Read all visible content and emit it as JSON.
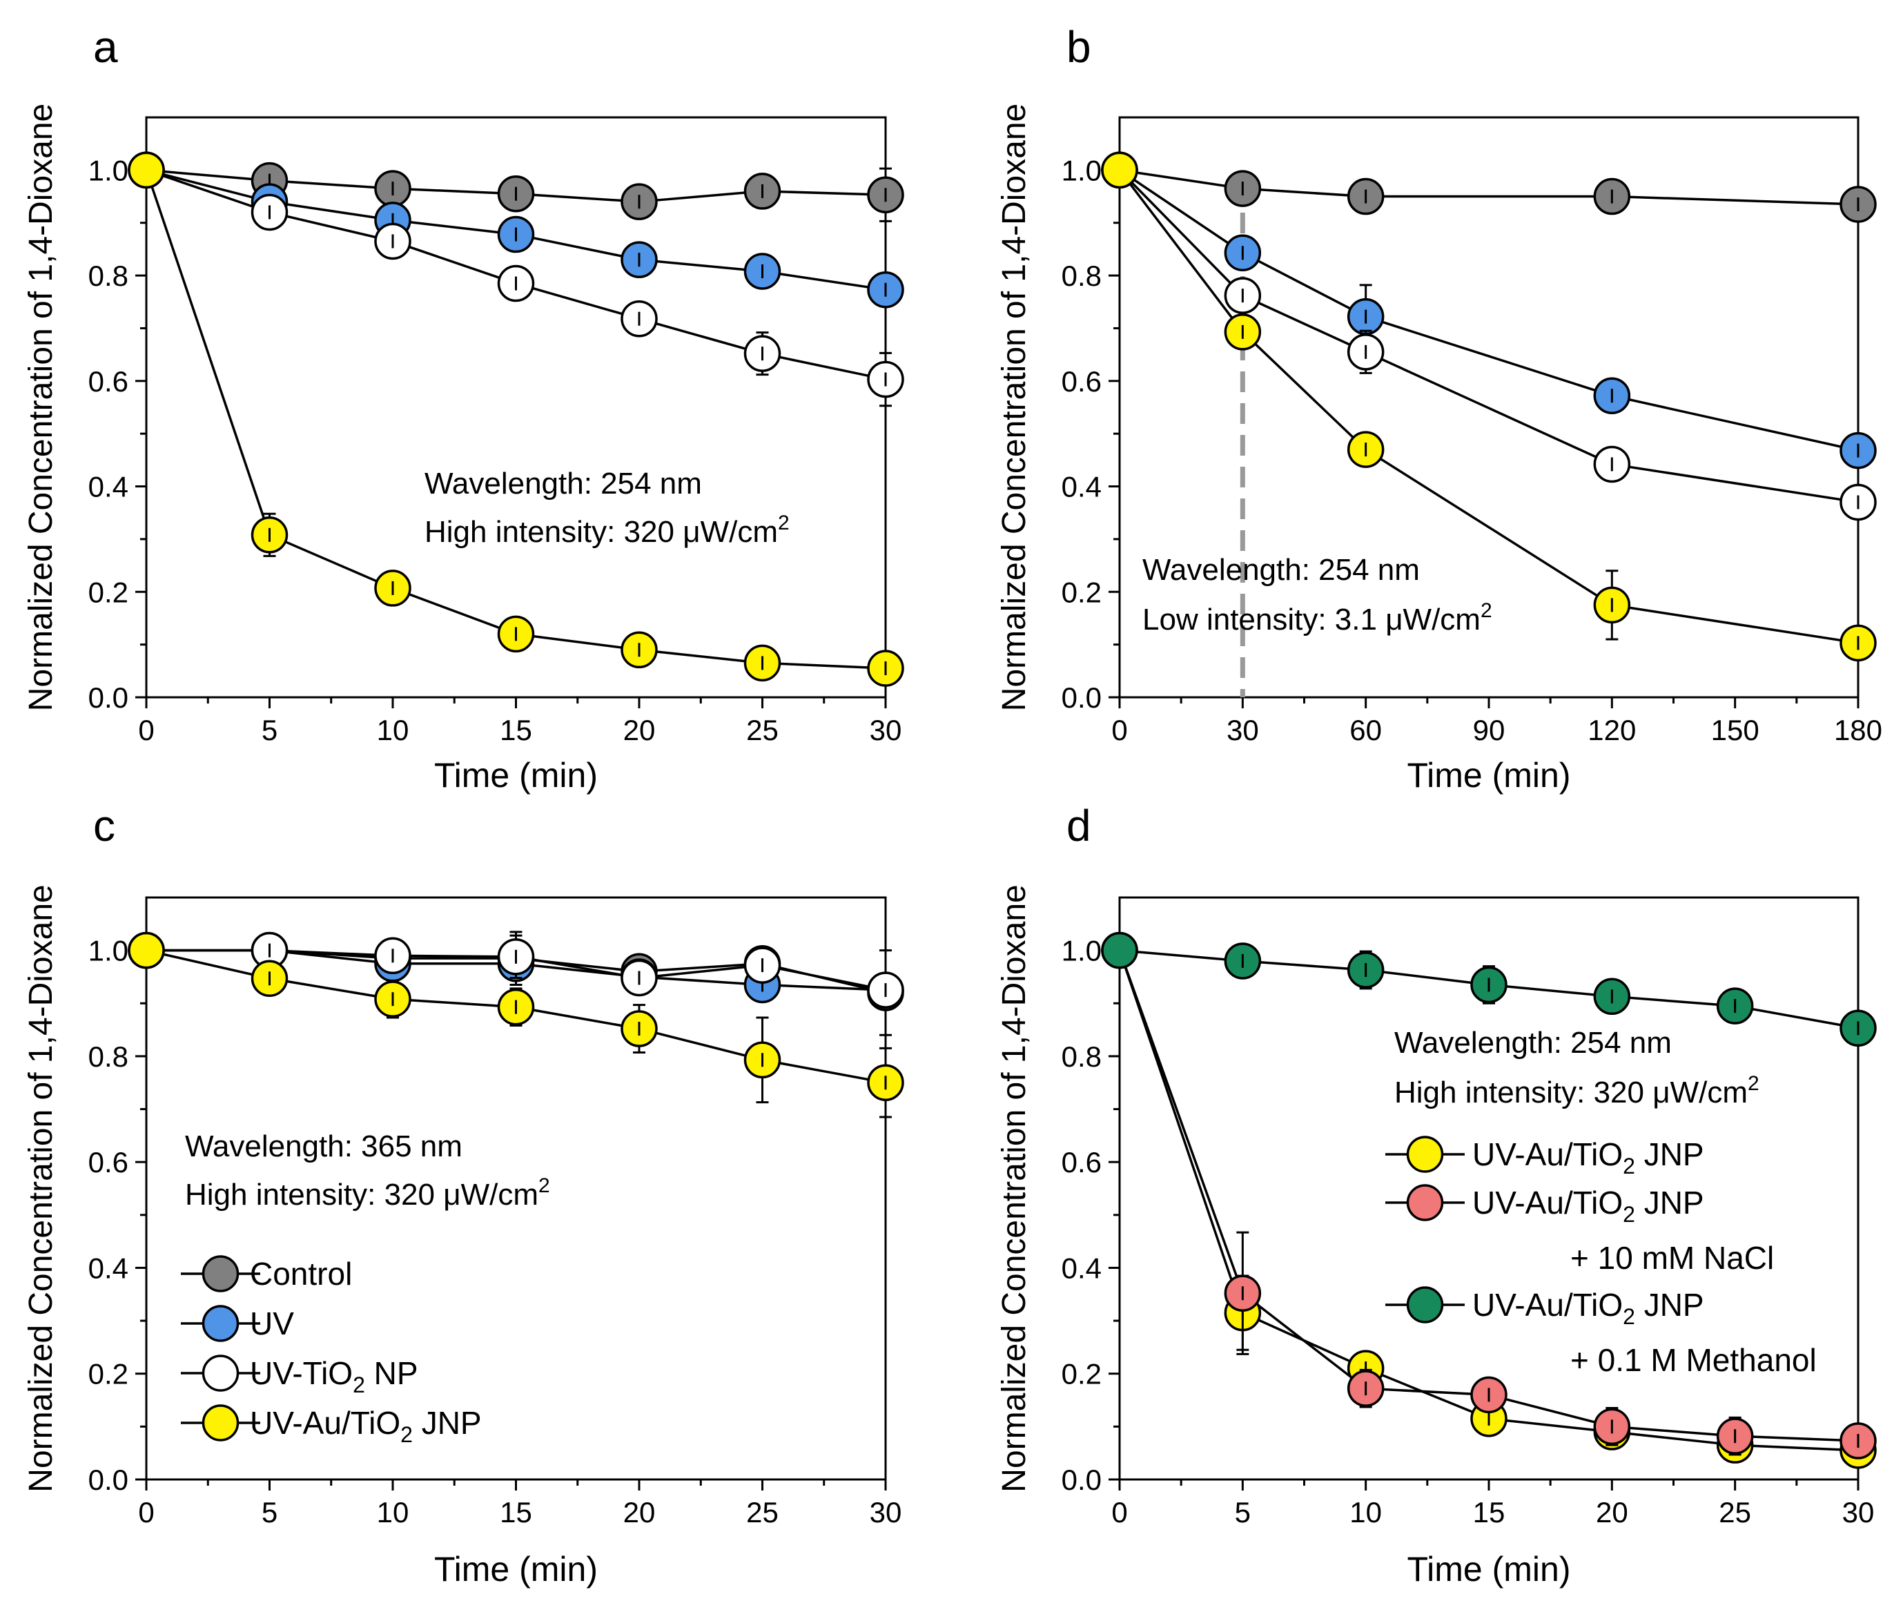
{
  "chart_data": [
    {
      "panel": "a",
      "type": "line",
      "xlabel": "Time (min)",
      "ylabel": "Normalized Concentration of 1,4-Dioxane",
      "xlim": [
        0,
        30
      ],
      "ylim": [
        0,
        1.1
      ],
      "xticks": [
        0,
        5,
        10,
        15,
        20,
        25,
        30
      ],
      "yticks": [
        "0.0",
        "0.2",
        "0.4",
        "0.6",
        "0.8",
        "1.0"
      ],
      "annotations": [
        {
          "text": "Wavelength: 254 nm"
        },
        {
          "text": "High intensity: 320 μW/cm",
          "sup": "2"
        }
      ],
      "series": [
        {
          "name": "Control",
          "color": "#808080",
          "x": [
            0,
            5,
            10,
            15,
            20,
            25,
            30
          ],
          "y": [
            1.0,
            0.98,
            0.965,
            0.955,
            0.94,
            0.96,
            0.953
          ],
          "err": [
            0,
            0.03,
            0.02,
            0.025,
            0.03,
            0.03,
            0.05
          ]
        },
        {
          "name": "UV",
          "color": "#4F94E6",
          "x": [
            0,
            5,
            10,
            15,
            20,
            25,
            30
          ],
          "y": [
            1.0,
            0.94,
            0.905,
            0.878,
            0.83,
            0.808,
            0.773
          ],
          "err": [
            0,
            0.02,
            0.02,
            0.02,
            0.02,
            0.02,
            0.02
          ]
        },
        {
          "name": "UV-TiO2 NP",
          "color": "#FFFFFF",
          "x": [
            0,
            5,
            10,
            15,
            20,
            25,
            30
          ],
          "y": [
            1.0,
            0.92,
            0.865,
            0.785,
            0.718,
            0.652,
            0.603
          ],
          "err": [
            0,
            0.02,
            0.02,
            0.015,
            0.015,
            0.04,
            0.05
          ]
        },
        {
          "name": "UV-Au/TiO2 JNP",
          "color": "#FFF200",
          "x": [
            0,
            5,
            10,
            15,
            20,
            25,
            30
          ],
          "y": [
            1.0,
            0.308,
            0.207,
            0.12,
            0.09,
            0.065,
            0.055
          ],
          "err": [
            0,
            0.04,
            0.015,
            0.015,
            0.015,
            0.015,
            0.01
          ]
        }
      ]
    },
    {
      "panel": "b",
      "type": "line",
      "xlabel": "Time (min)",
      "ylabel": "Normalized Concentration of 1,4-Dioxane",
      "xlim": [
        0,
        180
      ],
      "ylim": [
        0,
        1.1
      ],
      "xticks": [
        0,
        30,
        60,
        90,
        120,
        150,
        180
      ],
      "yticks": [
        "0.0",
        "0.2",
        "0.4",
        "0.6",
        "0.8",
        "1.0"
      ],
      "vline_x": 30,
      "annotations": [
        {
          "text": "Wavelength: 254 nm"
        },
        {
          "text": "Low intensity: 3.1 μW/cm",
          "sup": "2"
        }
      ],
      "series": [
        {
          "name": "Control",
          "color": "#808080",
          "x": [
            0,
            30,
            60,
            120,
            180
          ],
          "y": [
            1.0,
            0.965,
            0.95,
            0.95,
            0.935
          ],
          "err": [
            0,
            0.03,
            0.02,
            0.02,
            0.02
          ]
        },
        {
          "name": "UV",
          "color": "#4F94E6",
          "x": [
            0,
            30,
            60,
            120,
            180
          ],
          "y": [
            1.0,
            0.843,
            0.722,
            0.572,
            0.468
          ],
          "err": [
            0,
            0.03,
            0.06,
            0.02,
            0.02
          ]
        },
        {
          "name": "UV-TiO2 NP",
          "color": "#FFFFFF",
          "x": [
            0,
            30,
            60,
            120,
            180
          ],
          "y": [
            1.0,
            0.762,
            0.655,
            0.442,
            0.37
          ],
          "err": [
            0,
            0.02,
            0.04,
            0.02,
            0.02
          ]
        },
        {
          "name": "UV-Au/TiO2 JNP",
          "color": "#FFF200",
          "x": [
            0,
            30,
            60,
            120,
            180
          ],
          "y": [
            1.0,
            0.693,
            0.47,
            0.175,
            0.103
          ],
          "err": [
            0,
            0.02,
            0.015,
            0.065,
            0.015
          ]
        }
      ]
    },
    {
      "panel": "c",
      "type": "line",
      "xlabel": "Time (min)",
      "ylabel": "Normalized Concentration of 1,4-Dioxane",
      "xlim": [
        0,
        30
      ],
      "ylim": [
        0,
        1.1
      ],
      "xticks": [
        0,
        5,
        10,
        15,
        20,
        25,
        30
      ],
      "yticks": [
        "0.0",
        "0.2",
        "0.4",
        "0.6",
        "0.8",
        "1.0"
      ],
      "annotations": [
        {
          "text": "Wavelength: 365 nm"
        },
        {
          "text": "High intensity: 320 μW/cm",
          "sup": "2"
        }
      ],
      "legend": [
        {
          "label": "Control",
          "color": "#808080"
        },
        {
          "label": "UV",
          "color": "#4F94E6"
        },
        {
          "label": "UV-TiO",
          "sub": "2",
          "label_tail": " NP",
          "color": "#FFFFFF"
        },
        {
          "label": "UV-Au/TiO",
          "sub": "2",
          "label_tail": " JNP",
          "color": "#FFF200"
        }
      ],
      "series": [
        {
          "name": "Control",
          "color": "#808080",
          "x": [
            0,
            5,
            10,
            15,
            20,
            25,
            30
          ],
          "y": [
            1.0,
            1.0,
            0.985,
            0.985,
            0.96,
            0.975,
            0.92
          ],
          "err": [
            0,
            0.03,
            0.03,
            0.05,
            0.03,
            0.03,
            0.08
          ]
        },
        {
          "name": "UV",
          "color": "#4F94E6",
          "x": [
            0,
            5,
            10,
            15,
            20,
            25,
            30
          ],
          "y": [
            1.0,
            1.0,
            0.975,
            0.975,
            0.95,
            0.935,
            0.925
          ],
          "err": [
            0,
            0.02,
            0.02,
            0.02,
            0.03,
            0.03,
            0.02
          ]
        },
        {
          "name": "UV-TiO2 NP",
          "color": "#FFFFFF",
          "x": [
            0,
            5,
            10,
            15,
            20,
            25,
            30
          ],
          "y": [
            1.0,
            1.0,
            0.99,
            0.988,
            0.948,
            0.972,
            0.925
          ],
          "err": [
            0,
            0.02,
            0.02,
            0.04,
            0.02,
            0.02,
            0.02
          ]
        },
        {
          "name": "UV-Au/TiO2 JNP",
          "color": "#FFF200",
          "x": [
            0,
            5,
            10,
            15,
            20,
            25,
            30
          ],
          "y": [
            1.0,
            0.947,
            0.908,
            0.893,
            0.852,
            0.793,
            0.75
          ],
          "err": [
            0,
            0.03,
            0.035,
            0.035,
            0.045,
            0.08,
            0.065
          ]
        }
      ]
    },
    {
      "panel": "d",
      "type": "line",
      "xlabel": "Time (min)",
      "ylabel": "Normalized Concentration of 1,4-Dioxane",
      "xlim": [
        0,
        30
      ],
      "ylim": [
        0,
        1.1
      ],
      "xticks": [
        0,
        5,
        10,
        15,
        20,
        25,
        30
      ],
      "yticks": [
        "0.0",
        "0.2",
        "0.4",
        "0.6",
        "0.8",
        "1.0"
      ],
      "annotations": [
        {
          "text": "Wavelength: 254 nm"
        },
        {
          "text": "High intensity: 320 μW/cm",
          "sup": "2"
        }
      ],
      "legend": [
        {
          "label": "UV-Au/TiO",
          "sub": "2",
          "label_tail": " JNP",
          "color": "#FFF200"
        },
        {
          "label": "UV-Au/TiO",
          "sub": "2",
          "label_tail": " JNP",
          "extra": "+ 10 mM NaCl",
          "color": "#F07878"
        },
        {
          "label": "UV-Au/TiO",
          "sub": "2",
          "label_tail": " JNP",
          "extra": "+ 0.1 M Methanol",
          "color": "#178A5C"
        }
      ],
      "series": [
        {
          "name": "UV-Au/TiO2 JNP",
          "color": "#FFF200",
          "x": [
            0,
            5,
            10,
            15,
            20,
            25,
            30
          ],
          "y": [
            1.0,
            0.315,
            0.21,
            0.115,
            0.09,
            0.065,
            0.055
          ],
          "err": [
            0,
            0.07,
            0.02,
            0.02,
            0.02,
            0.02,
            0.02
          ]
        },
        {
          "name": "UV-Au/TiO2 JNP + 10 mM NaCl",
          "color": "#F07878",
          "x": [
            0,
            5,
            10,
            15,
            20,
            25,
            30
          ],
          "y": [
            1.0,
            0.352,
            0.172,
            0.16,
            0.1,
            0.082,
            0.073
          ],
          "err": [
            0,
            0.115,
            0.035,
            0.02,
            0.035,
            0.035,
            0.03
          ]
        },
        {
          "name": "UV-Au/TiO2 JNP + 0.1 M Methanol",
          "color": "#178A5C",
          "x": [
            0,
            5,
            10,
            15,
            20,
            25,
            30
          ],
          "y": [
            1.0,
            0.98,
            0.963,
            0.935,
            0.913,
            0.895,
            0.853
          ],
          "err": [
            0,
            0.015,
            0.035,
            0.035,
            0.02,
            0.025,
            0.015
          ]
        }
      ]
    }
  ]
}
